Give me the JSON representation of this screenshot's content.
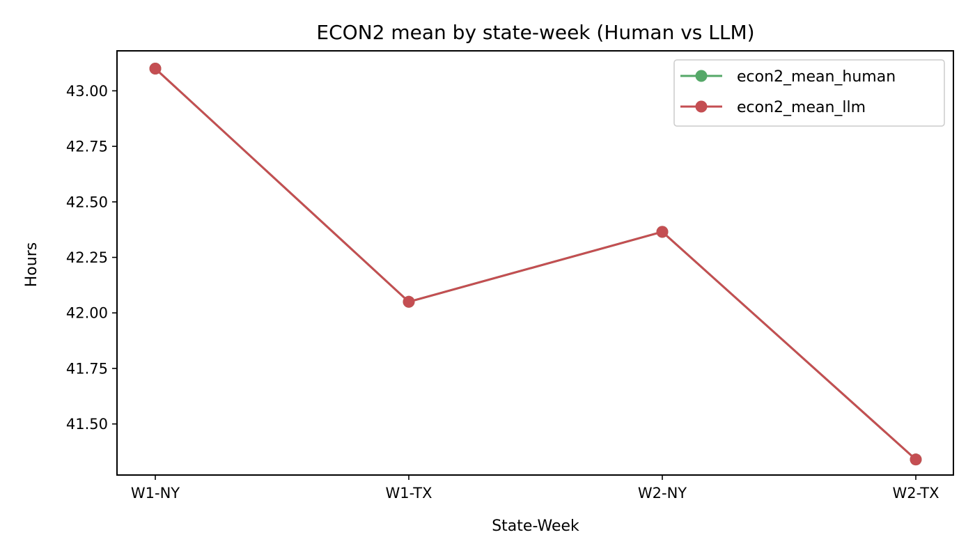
{
  "chart_data": {
    "type": "line",
    "title": "ECON2 mean by state-week (Human vs LLM)",
    "xlabel": "State-Week",
    "ylabel": "Hours",
    "categories": [
      "W1-NY",
      "W1-TX",
      "W2-NY",
      "W2-TX"
    ],
    "ylim": [
      41.27,
      43.18
    ],
    "yticks": [
      41.5,
      41.75,
      42.0,
      42.25,
      42.5,
      42.75,
      43.0
    ],
    "ytick_labels": [
      "41.50",
      "41.75",
      "42.00",
      "42.25",
      "42.50",
      "42.75",
      "43.00"
    ],
    "grid": false,
    "legend_position": "top-right",
    "series": [
      {
        "name": "econ2_mean_human",
        "color": "#55a868",
        "values": [
          43.1,
          42.05,
          42.365,
          41.34
        ]
      },
      {
        "name": "econ2_mean_llm",
        "color": "#c44e52",
        "values": [
          43.1,
          42.05,
          42.365,
          41.34
        ]
      }
    ]
  }
}
